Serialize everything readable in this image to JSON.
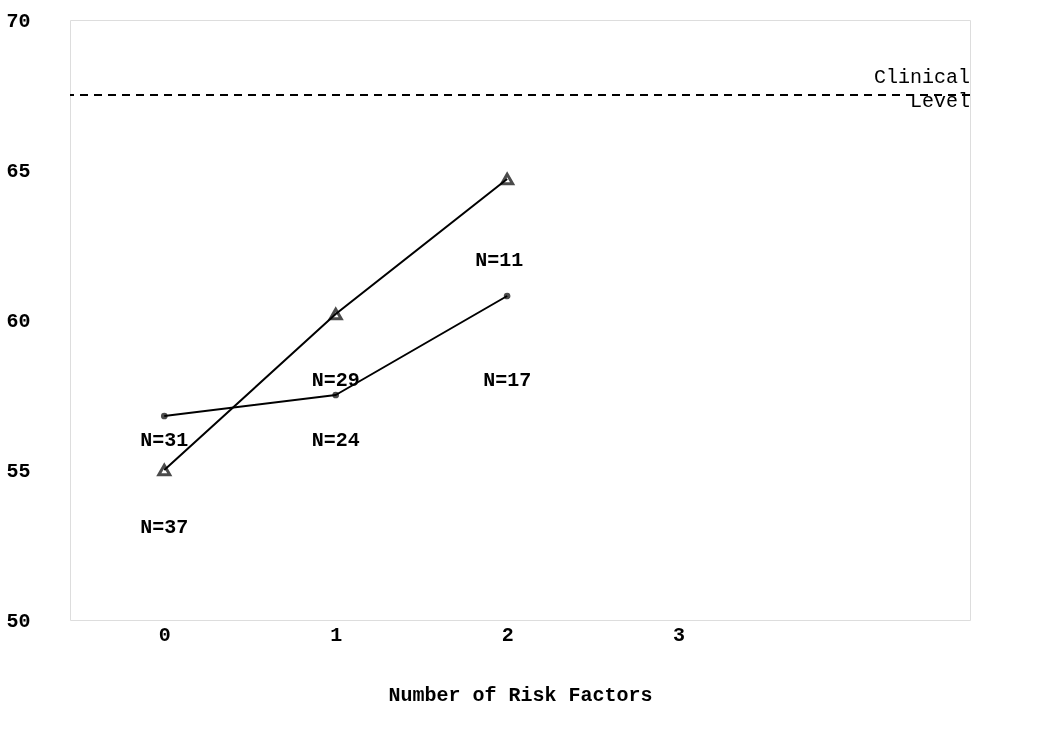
{
  "chart_data": {
    "type": "line",
    "xlabel": "Number of Risk Factors",
    "x": [
      0,
      1,
      2
    ],
    "series": [
      {
        "color": "#000000",
        "marker": "triangle",
        "values": [
          55.0,
          60.2,
          64.7
        ]
      },
      {
        "color": "#000000",
        "marker": "circle",
        "values": [
          56.8,
          57.5,
          60.8
        ]
      }
    ],
    "xlim": [
      -0.55,
      4.7
    ],
    "ylim": [
      50,
      70
    ],
    "xticks": [
      0,
      1,
      2,
      3
    ],
    "yticks": [
      50,
      55,
      60,
      65,
      70
    ],
    "grid": false,
    "ref_lines": [
      {
        "axis": "y",
        "value": 67.5,
        "label": "Clinical Level",
        "line_style": "dashed",
        "color": "#000000"
      }
    ],
    "annotations": [
      "N=37",
      "N=31",
      "N=29",
      "N=24",
      "N=11",
      "N=17"
    ]
  }
}
